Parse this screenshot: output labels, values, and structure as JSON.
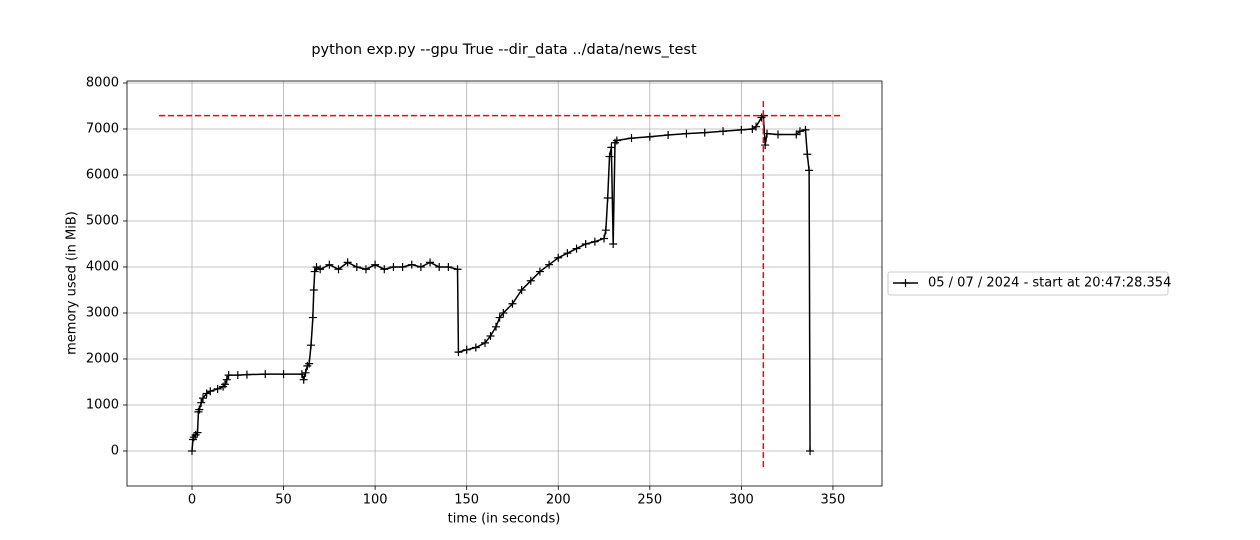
{
  "chart_data": {
    "type": "line",
    "title": "python exp.py --gpu True --dir_data ../data/news_test",
    "x_label": "time (in seconds)",
    "y_label": "memory used (in MiB)",
    "xlim": [
      -35.5,
      376.8
    ],
    "ylim": [
      -761,
      8043
    ],
    "xticks": [
      0,
      50,
      100,
      150,
      200,
      250,
      300,
      350
    ],
    "yticks": [
      0,
      1000,
      2000,
      3000,
      4000,
      5000,
      6000,
      7000,
      8000
    ],
    "grid": true,
    "legend_position": "right",
    "x": [
      0,
      0.5,
      1,
      2,
      3,
      3.5,
      4,
      5,
      6,
      8,
      10,
      14,
      17,
      18,
      19,
      20,
      25,
      30,
      40,
      50,
      60,
      61,
      62,
      63,
      64,
      65,
      66,
      66.5,
      67,
      68,
      70,
      75,
      80,
      85,
      90,
      95,
      100,
      105,
      110,
      115,
      120,
      125,
      130,
      135,
      140,
      145,
      145.5,
      150,
      155,
      160,
      163,
      166,
      168,
      170,
      175,
      180,
      185,
      190,
      195,
      200,
      205,
      210,
      215,
      220,
      225,
      226,
      227,
      228,
      229,
      230,
      231,
      232,
      240,
      250,
      260,
      270,
      280,
      290,
      300,
      306,
      308,
      311,
      312,
      313,
      314,
      320,
      330,
      332,
      335,
      336,
      337,
      337.5
    ],
    "series": [
      {
        "name": "05 / 07 / 2024 - start at 20:47:28.354",
        "color": "#000000",
        "values": [
          0,
          250,
          300,
          350,
          400,
          850,
          900,
          1050,
          1150,
          1250,
          1300,
          1350,
          1400,
          1450,
          1550,
          1650,
          1650,
          1660,
          1670,
          1670,
          1670,
          1550,
          1700,
          1850,
          1900,
          2300,
          2900,
          3500,
          3900,
          4000,
          3950,
          4050,
          3950,
          4100,
          4000,
          3950,
          4050,
          3950,
          4000,
          4000,
          4050,
          4000,
          4100,
          4000,
          4000,
          3950,
          2150,
          2200,
          2250,
          2350,
          2500,
          2700,
          2900,
          3000,
          3200,
          3500,
          3700,
          3900,
          4050,
          4200,
          4300,
          4400,
          4500,
          4550,
          4620,
          4800,
          5500,
          6400,
          6600,
          4500,
          6700,
          6750,
          6800,
          6830,
          6870,
          6900,
          6920,
          6950,
          6980,
          7000,
          7050,
          7250,
          7290,
          6650,
          6900,
          6880,
          6880,
          6950,
          6980,
          6450,
          6100,
          0
        ]
      }
    ],
    "peak_lines": {
      "color": "#ff0000",
      "hline": 7290,
      "hline_x": [
        -18,
        355
      ],
      "vline": 312,
      "vline_y": [
        -350,
        7650
      ]
    }
  }
}
